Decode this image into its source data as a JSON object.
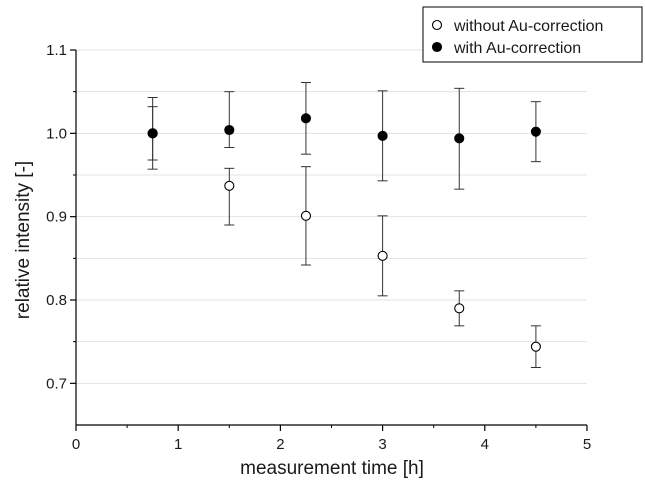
{
  "chart_data": {
    "type": "scatter",
    "xlabel": "measurement time [h]",
    "ylabel": "relative intensity [-]",
    "xlim": [
      0,
      5
    ],
    "ylim": [
      0.65,
      1.1
    ],
    "xticks": [
      0,
      1,
      2,
      3,
      4,
      5
    ],
    "yticks": [
      0.7,
      0.8,
      0.9,
      1.0,
      1.1
    ],
    "xtick_labels": [
      "0",
      "1",
      "2",
      "3",
      "4",
      "5"
    ],
    "ytick_labels": [
      "0.7",
      "0.8",
      "0.9",
      "1.0",
      "1.1"
    ],
    "grid": "horizontal",
    "legend_position": "top-right",
    "series": [
      {
        "name": "without Au-correction",
        "marker": "open-circle",
        "x": [
          0.75,
          1.5,
          2.25,
          3.0,
          3.75,
          4.5
        ],
        "y": [
          1.0,
          0.937,
          0.901,
          0.853,
          0.79,
          0.744
        ],
        "err_low": [
          0.032,
          0.047,
          0.059,
          0.048,
          0.021,
          0.025
        ],
        "err_high": [
          0.032,
          0.021,
          0.059,
          0.048,
          0.021,
          0.025
        ]
      },
      {
        "name": "with Au-correction",
        "marker": "filled-circle",
        "x": [
          0.75,
          1.5,
          2.25,
          3.0,
          3.75,
          4.5
        ],
        "y": [
          1.0,
          1.004,
          1.018,
          0.997,
          0.994,
          1.002
        ],
        "err_low": [
          0.043,
          0.021,
          0.043,
          0.054,
          0.061,
          0.036
        ],
        "err_high": [
          0.043,
          0.046,
          0.043,
          0.054,
          0.06,
          0.036
        ]
      }
    ]
  }
}
